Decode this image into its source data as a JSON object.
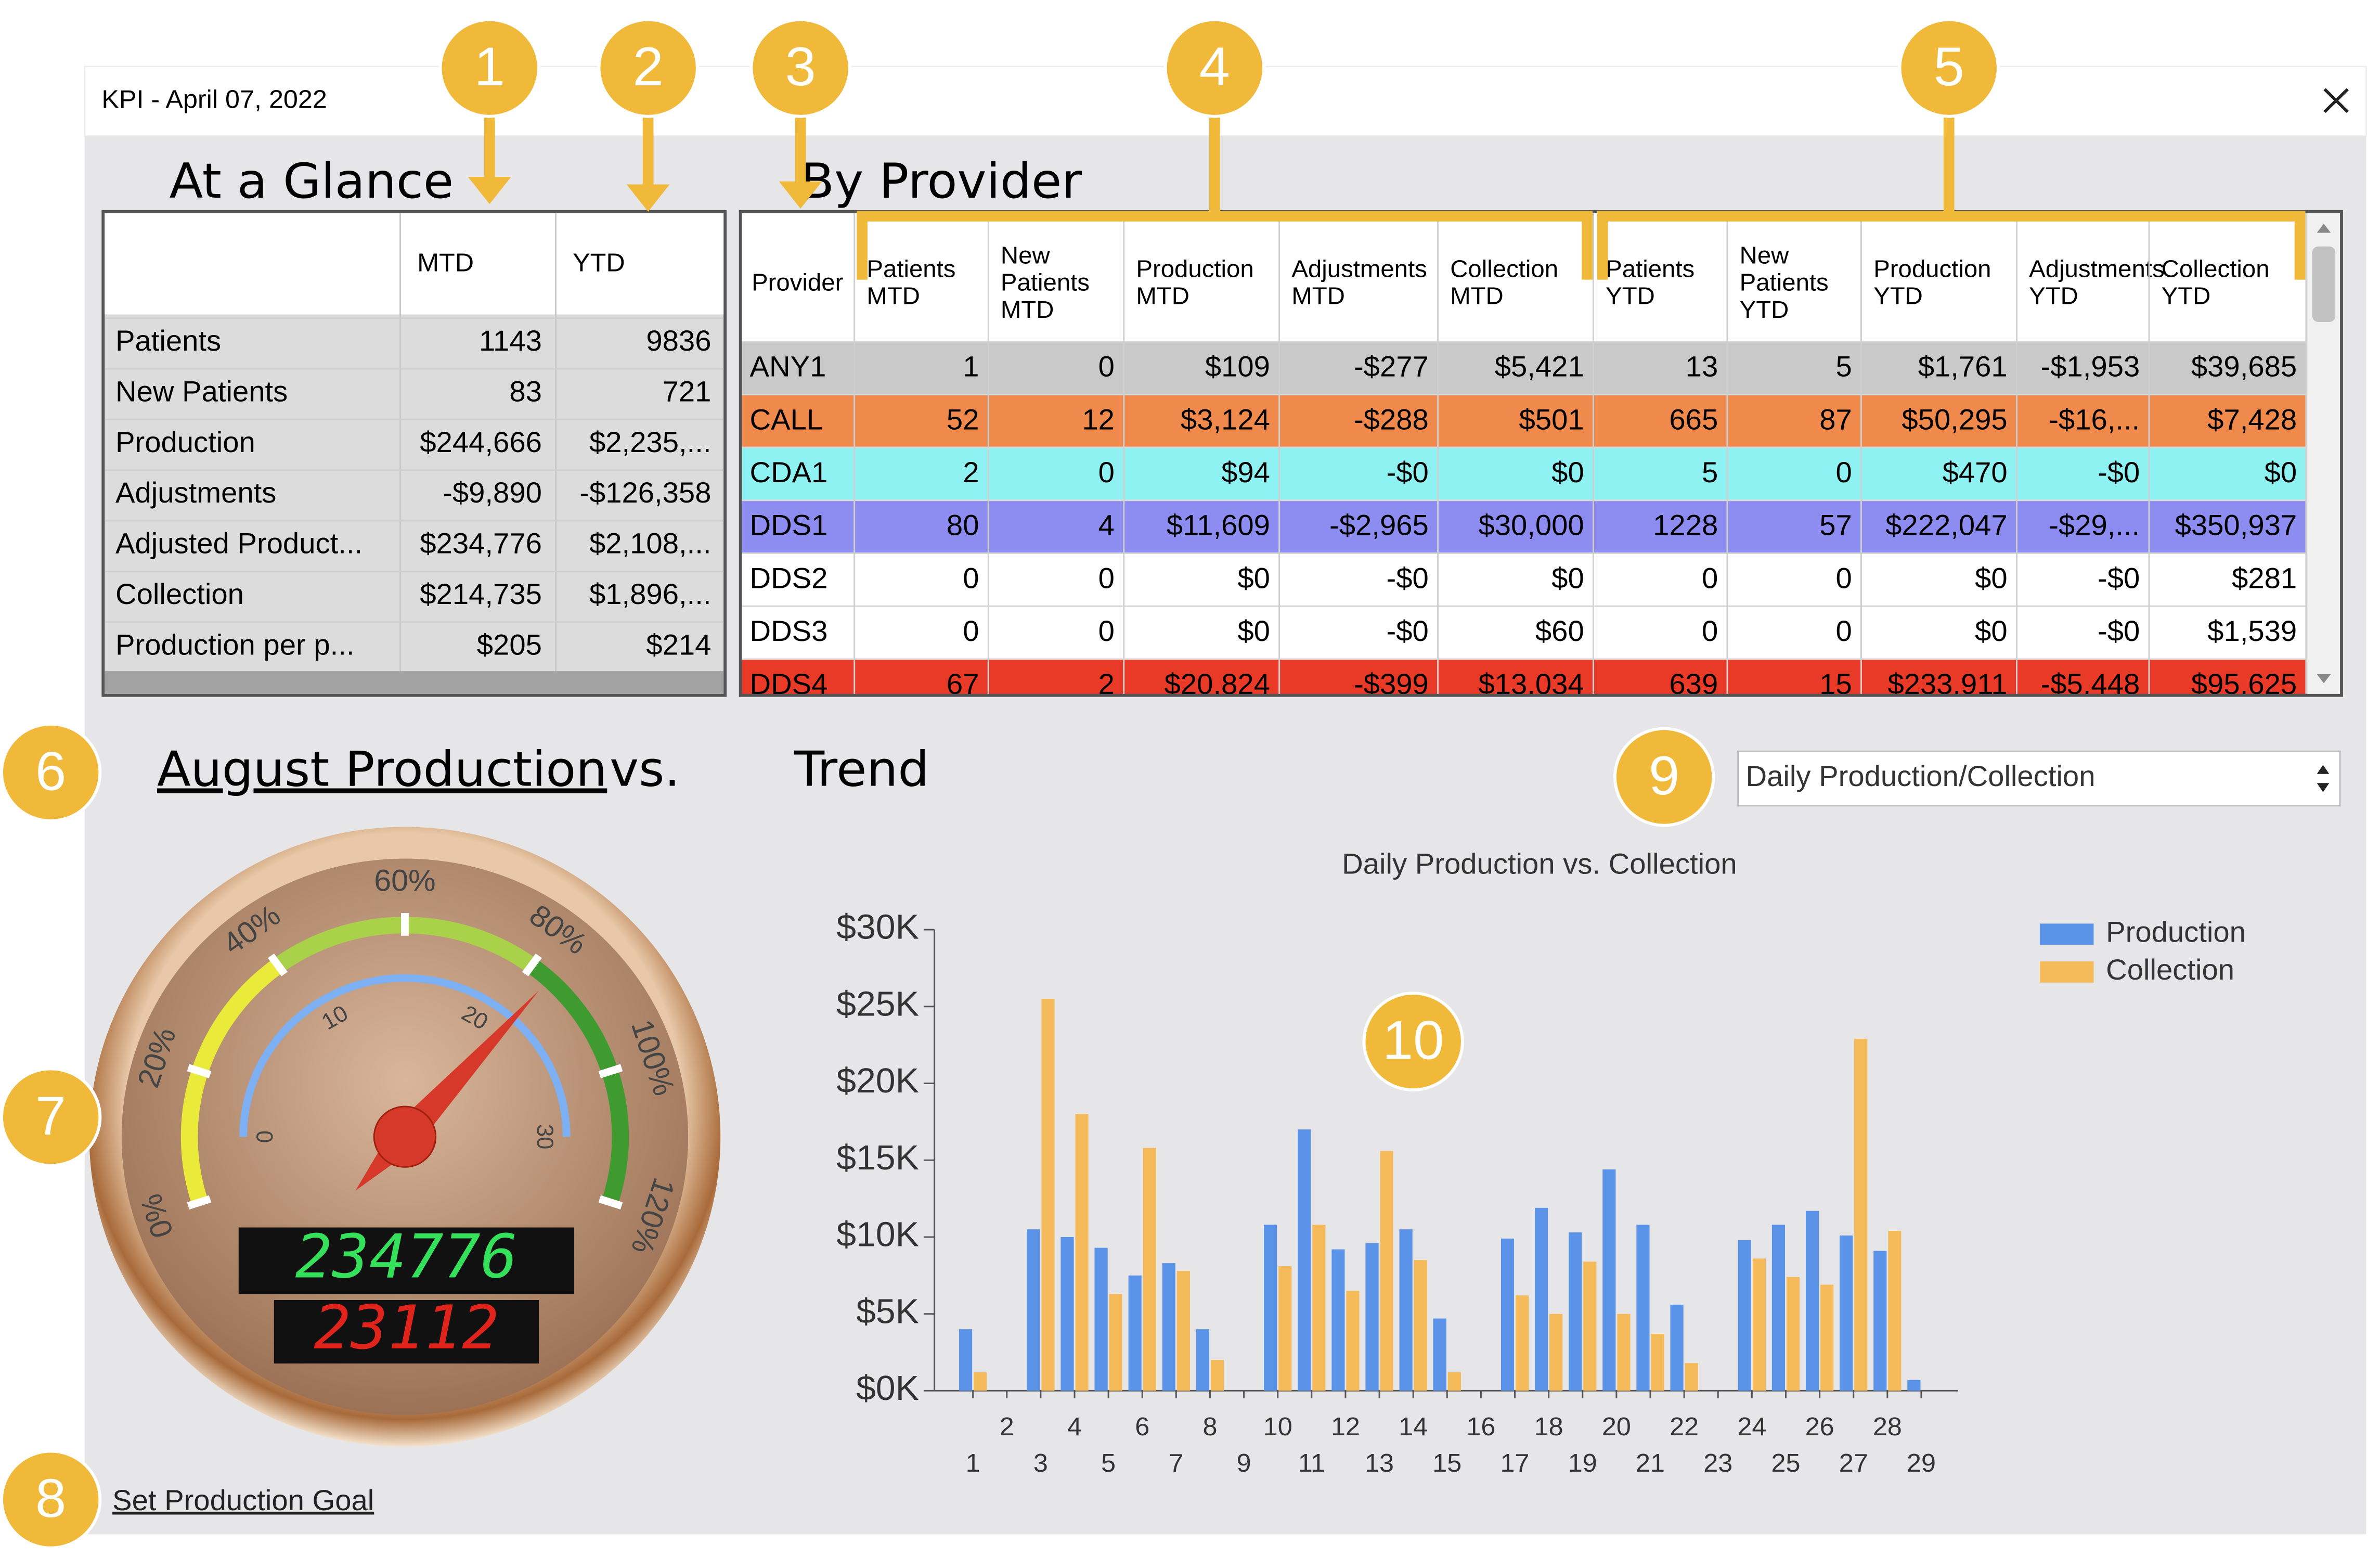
{
  "window": {
    "title": "KPI - April 07, 2022"
  },
  "callouts": [
    "1",
    "2",
    "3",
    "4",
    "5",
    "6",
    "7",
    "8",
    "9",
    "10"
  ],
  "at_a_glance": {
    "title": "At a Glance",
    "columns": [
      "MTD",
      "YTD"
    ],
    "rows": [
      [
        "Patients",
        "1143",
        "9836"
      ],
      [
        "New Patients",
        "83",
        "721"
      ],
      [
        "Production",
        "$244,666",
        "$2,235,..."
      ],
      [
        "Adjustments",
        "-$9,890",
        "-$126,358"
      ],
      [
        "Adjusted Product...",
        "$234,776",
        "$2,108,..."
      ],
      [
        "Collection",
        "$214,735",
        "$1,896,..."
      ],
      [
        "Production per p...",
        "$205",
        "$214"
      ]
    ]
  },
  "by_provider": {
    "title": "By Provider",
    "columns": [
      [
        "Provider"
      ],
      [
        "Patients",
        "MTD"
      ],
      [
        "New",
        "Patients",
        "MTD"
      ],
      [
        "Production",
        "MTD"
      ],
      [
        "Adjustments",
        "MTD"
      ],
      [
        "Collection",
        "MTD"
      ],
      [
        "Patients",
        "YTD"
      ],
      [
        "New",
        "Patients",
        "YTD"
      ],
      [
        "Production",
        "YTD"
      ],
      [
        "Adjustments",
        "YTD"
      ],
      [
        "Collection",
        "YTD"
      ]
    ],
    "rows": [
      {
        "color": "#c9c9c9",
        "cells": [
          "ANY1",
          "1",
          "0",
          "$109",
          "-$277",
          "$5,421",
          "13",
          "5",
          "$1,761",
          "-$1,953",
          "$39,685"
        ]
      },
      {
        "color": "#f0894c",
        "cells": [
          "CALL",
          "52",
          "12",
          "$3,124",
          "-$288",
          "$501",
          "665",
          "87",
          "$50,295",
          "-$16,...",
          "$7,428"
        ]
      },
      {
        "color": "#8ff2f2",
        "cells": [
          "CDA1",
          "2",
          "0",
          "$94",
          "-$0",
          "$0",
          "5",
          "0",
          "$470",
          "-$0",
          "$0"
        ]
      },
      {
        "color": "#8d8cf0",
        "cells": [
          "DDS1",
          "80",
          "4",
          "$11,609",
          "-$2,965",
          "$30,000",
          "1228",
          "57",
          "$222,047",
          "-$29,...",
          "$350,937"
        ]
      },
      {
        "color": "#ffffff",
        "cells": [
          "DDS2",
          "0",
          "0",
          "$0",
          "-$0",
          "$0",
          "0",
          "0",
          "$0",
          "-$0",
          "$281"
        ]
      },
      {
        "color": "#ffffff",
        "cells": [
          "DDS3",
          "0",
          "0",
          "$0",
          "-$0",
          "$60",
          "0",
          "0",
          "$0",
          "-$0",
          "$1,539"
        ]
      },
      {
        "color": "#e83a26",
        "cells": [
          "DDS4",
          "67",
          "2",
          "$20,824",
          "-$399",
          "$13,034",
          "639",
          "15",
          "$233,911",
          "-$5,448",
          "$95,625"
        ]
      }
    ]
  },
  "production_gauge": {
    "heading": "August Production",
    "vs": "vs.",
    "trend": "Trend",
    "percent_labels": [
      "0%",
      "20%",
      "40%",
      "60%",
      "80%",
      "100%",
      "120%"
    ],
    "count_labels": [
      "0",
      "10",
      "20",
      "30"
    ],
    "display_top": "234776",
    "display_bottom": "23112"
  },
  "view_selector": "Daily Production/Collection",
  "chart_data": {
    "type": "bar",
    "title": "Daily Production vs. Collection",
    "categories": [
      "1",
      "2",
      "3",
      "4",
      "5",
      "6",
      "7",
      "8",
      "9",
      "10",
      "11",
      "12",
      "13",
      "14",
      "15",
      "16",
      "17",
      "18",
      "19",
      "20",
      "21",
      "22",
      "23",
      "24",
      "25",
      "26",
      "27",
      "28",
      "29"
    ],
    "series": [
      {
        "name": "Production",
        "color": "#5b93e8",
        "values": [
          4000,
          0,
          10500,
          10000,
          9300,
          7500,
          8300,
          4000,
          0,
          10800,
          17000,
          9200,
          9600,
          10500,
          4700,
          0,
          9900,
          11900,
          10300,
          14400,
          10800,
          5600,
          0,
          9800,
          10800,
          11700,
          10100,
          9100,
          700
        ]
      },
      {
        "name": "Collection",
        "color": "#f5bb5a",
        "values": [
          1200,
          0,
          25500,
          18000,
          6300,
          15800,
          7800,
          2000,
          0,
          8100,
          10800,
          6500,
          15600,
          8500,
          1200,
          0,
          6200,
          5000,
          8400,
          5000,
          3700,
          1800,
          0,
          8600,
          7400,
          6900,
          22900,
          10400,
          0
        ]
      }
    ],
    "ylim": [
      0,
      30000
    ],
    "yticks": [
      {
        "value": 0,
        "label": "$0K"
      },
      {
        "value": 5000,
        "label": "$5K"
      },
      {
        "value": 10000,
        "label": "$10K"
      },
      {
        "value": 15000,
        "label": "$15K"
      },
      {
        "value": 20000,
        "label": "$20K"
      },
      {
        "value": 25000,
        "label": "$25K"
      },
      {
        "value": 30000,
        "label": "$30K"
      }
    ],
    "legend": "top-right"
  },
  "set_goal_link": "Set Production Goal"
}
